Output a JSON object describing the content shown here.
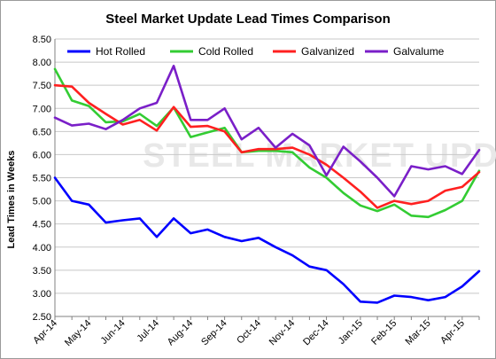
{
  "chart_data": {
    "type": "line",
    "title": "Steel Market Update Lead Times Comparison",
    "ylabel": "Lead Times in Weeks",
    "xlabel": "",
    "ylim": [
      2.5,
      8.5
    ],
    "yticks": [
      "2.50",
      "3.00",
      "3.50",
      "4.00",
      "4.50",
      "5.00",
      "5.50",
      "6.00",
      "6.50",
      "7.00",
      "7.50",
      "8.00",
      "8.50"
    ],
    "x_labels": [
      "Apr-14",
      "May-14",
      "Jun-14",
      "Jul-14",
      "Aug-14",
      "Sep-14",
      "Oct-14",
      "Nov-14",
      "Dec-14",
      "Jan-15",
      "Feb-15",
      "Mar-15",
      "Apr-15"
    ],
    "label_every": 2,
    "points_count": 26,
    "watermark": "STEEL MARKET UPDATE",
    "grid": true,
    "legend_position": "top",
    "series": [
      {
        "name": "Hot Rolled",
        "color": "#0000ff",
        "values": [
          5.5,
          5.0,
          4.92,
          4.53,
          4.58,
          4.62,
          4.22,
          4.62,
          4.3,
          4.38,
          4.22,
          4.13,
          4.2,
          4.0,
          3.82,
          3.58,
          3.5,
          3.2,
          2.82,
          2.8,
          2.95,
          2.92,
          2.85,
          2.92,
          3.15,
          3.48
        ]
      },
      {
        "name": "Cold Rolled",
        "color": "#33cc33",
        "values": [
          7.85,
          7.17,
          7.05,
          6.7,
          6.72,
          6.88,
          6.62,
          7.02,
          6.38,
          6.48,
          6.58,
          6.05,
          6.08,
          6.08,
          6.05,
          5.72,
          5.5,
          5.17,
          4.9,
          4.78,
          4.92,
          4.68,
          4.65,
          4.8,
          5.0,
          5.65
        ]
      },
      {
        "name": "Galvanized",
        "color": "#ff2020",
        "values": [
          7.5,
          7.47,
          7.12,
          6.88,
          6.65,
          6.75,
          6.52,
          7.03,
          6.6,
          6.62,
          6.5,
          6.05,
          6.12,
          6.12,
          6.15,
          6.0,
          5.78,
          5.5,
          5.2,
          4.85,
          5.0,
          4.93,
          5.0,
          5.22,
          5.3,
          5.62
        ]
      },
      {
        "name": "Galvalume",
        "color": "#7a1fc8",
        "values": [
          6.8,
          6.63,
          6.67,
          6.55,
          6.75,
          7.0,
          7.12,
          7.92,
          6.75,
          6.75,
          7.0,
          6.33,
          6.58,
          6.15,
          6.45,
          6.2,
          5.55,
          6.17,
          5.85,
          5.5,
          5.1,
          5.75,
          5.68,
          5.75,
          5.58,
          6.1
        ]
      }
    ]
  }
}
